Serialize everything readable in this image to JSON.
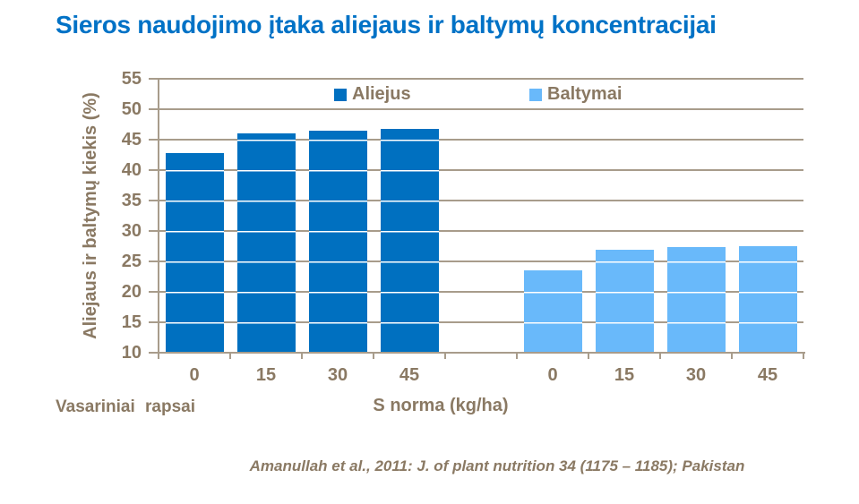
{
  "title": "Sieros naudojimo įtaka aliejaus ir baltymų koncentracijai",
  "footer": {
    "crop_label": "Vasariniai rapsai",
    "citation": "Amanullah et al., 2011: J. of plant nutrition 34 (1175 – 1185); Pakistan"
  },
  "colors": {
    "title": "#0072C6",
    "text_brown": "#8A7963",
    "gridline": "#A89C8B",
    "series_aliejus": "#0070C0",
    "series_baltymai": "#69B9FA",
    "background": "#FFFFFF"
  },
  "chart_data": {
    "type": "bar",
    "title": "Sieros naudojimo įtaka aliejaus ir baltymų koncentracijai",
    "ylabel": "Aliejaus ir baltymų kiekis (%)",
    "xlabel": "S norma (kg/ha)",
    "ylim": [
      10,
      55
    ],
    "ytick_step": 5,
    "grid": true,
    "legend_position": "top-inside",
    "x_categories": [
      "0",
      "15",
      "30",
      "45"
    ],
    "group_gap_slots": 1,
    "series": [
      {
        "name": "Aliejus",
        "color": "#0070C0",
        "values": [
          42.8,
          46.0,
          46.4,
          46.7
        ]
      },
      {
        "name": "Baltymai",
        "color": "#69B9FA",
        "values": [
          23.5,
          26.9,
          27.3,
          27.5
        ]
      }
    ]
  }
}
